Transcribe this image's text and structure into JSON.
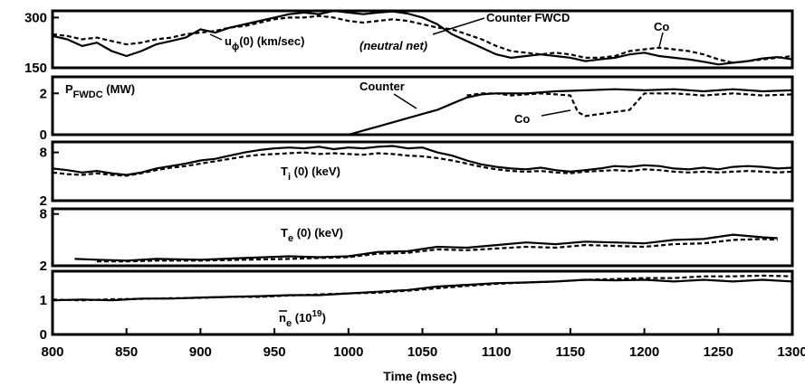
{
  "chart_data": {
    "type": "line",
    "shared_x": {
      "label": "Time (msec)",
      "lim": [
        800,
        1300
      ],
      "ticks": [
        "800",
        "850",
        "900",
        "950",
        "1000",
        "1050",
        "1100",
        "1150",
        "1200",
        "1250",
        "1300"
      ]
    },
    "legend": "annotations",
    "grid": false,
    "panels": [
      {
        "label_main": "u",
        "label_sub": "ϕ",
        "label_rest": "(0) (km/sec)",
        "ylim": [
          150,
          320
        ],
        "y_ticks": [
          "300",
          "150"
        ],
        "y_tick_values": [
          300,
          150
        ],
        "annotations": [
          "Counter FWCD",
          "(neutral net)",
          "Co"
        ],
        "series": [
          {
            "name": "Counter FWCD",
            "style": "solid",
            "x": [
              800,
              810,
              820,
              830,
              840,
              850,
              860,
              870,
              880,
              890,
              900,
              910,
              920,
              930,
              940,
              950,
              960,
              970,
              980,
              990,
              1000,
              1010,
              1020,
              1030,
              1040,
              1050,
              1060,
              1070,
              1080,
              1090,
              1100,
              1110,
              1120,
              1130,
              1140,
              1150,
              1160,
              1170,
              1180,
              1190,
              1200,
              1210,
              1220,
              1230,
              1240,
              1250,
              1260,
              1270,
              1280,
              1290,
              1300
            ],
            "y": [
              245,
              235,
              215,
              225,
              200,
              185,
              200,
              220,
              230,
              240,
              265,
              255,
              270,
              280,
              290,
              300,
              310,
              315,
              310,
              320,
              315,
              310,
              315,
              318,
              312,
              300,
              280,
              250,
              230,
              210,
              190,
              180,
              185,
              190,
              185,
              180,
              170,
              175,
              180,
              190,
              195,
              185,
              180,
              175,
              168,
              160,
              165,
              170,
              178,
              182,
              175
            ]
          },
          {
            "name": "Co",
            "style": "dashed",
            "x": [
              800,
              810,
              820,
              830,
              840,
              850,
              860,
              870,
              880,
              890,
              900,
              910,
              920,
              930,
              940,
              950,
              960,
              970,
              980,
              990,
              1000,
              1010,
              1020,
              1030,
              1040,
              1050,
              1060,
              1070,
              1080,
              1090,
              1100,
              1110,
              1120,
              1130,
              1140,
              1150,
              1160,
              1170,
              1180,
              1190,
              1200,
              1210,
              1220,
              1230,
              1240,
              1250,
              1260,
              1270,
              1280,
              1290,
              1300
            ],
            "y": [
              250,
              245,
              235,
              240,
              230,
              220,
              225,
              235,
              240,
              250,
              255,
              260,
              270,
              275,
              285,
              295,
              300,
              300,
              305,
              300,
              290,
              285,
              290,
              295,
              290,
              280,
              270,
              265,
              250,
              235,
              215,
              200,
              195,
              190,
              195,
              190,
              180,
              180,
              185,
              200,
              205,
              210,
              205,
              200,
              190,
              175,
              165,
              170,
              175,
              180,
              185
            ]
          }
        ]
      },
      {
        "label_main": "P",
        "label_sub": "FWDC",
        "label_rest": " (MW)",
        "ylim": [
          0,
          2.8
        ],
        "y_ticks": [
          "2",
          "0"
        ],
        "y_tick_values": [
          2,
          0
        ],
        "annotations": [
          "Counter",
          "Co"
        ],
        "series": [
          {
            "name": "Counter",
            "style": "solid",
            "x": [
              800,
              900,
              1000,
              1010,
              1020,
              1030,
              1040,
              1050,
              1060,
              1070,
              1080,
              1090,
              1100,
              1120,
              1140,
              1160,
              1180,
              1200,
              1220,
              1240,
              1260,
              1280,
              1300
            ],
            "y": [
              0,
              0,
              0,
              0.2,
              0.4,
              0.6,
              0.8,
              1.0,
              1.2,
              1.5,
              1.8,
              1.95,
              2.0,
              2.0,
              2.1,
              2.15,
              2.2,
              2.15,
              2.2,
              2.1,
              2.2,
              2.1,
              2.15
            ]
          },
          {
            "name": "Co",
            "style": "dashed",
            "x": [
              1080,
              1090,
              1100,
              1110,
              1120,
              1130,
              1140,
              1150,
              1155,
              1160,
              1170,
              1180,
              1190,
              1200,
              1220,
              1240,
              1260,
              1280,
              1300
            ],
            "y": [
              1.9,
              2.0,
              2.0,
              1.9,
              1.95,
              2.0,
              1.95,
              1.9,
              1.1,
              0.9,
              1.0,
              1.1,
              1.2,
              2.0,
              2.0,
              1.9,
              2.0,
              1.9,
              1.95
            ]
          }
        ]
      },
      {
        "label_main": "T",
        "label_sub": "i",
        "label_rest": " (0) (keV)",
        "ylim": [
          2,
          9.3
        ],
        "y_ticks": [
          "8",
          "2"
        ],
        "y_tick_values": [
          8,
          2
        ],
        "annotations": [],
        "series": [
          {
            "name": "Counter",
            "style": "solid",
            "x": [
              800,
              810,
              820,
              830,
              840,
              850,
              860,
              870,
              880,
              890,
              900,
              910,
              920,
              930,
              940,
              950,
              960,
              970,
              980,
              990,
              1000,
              1010,
              1020,
              1030,
              1040,
              1050,
              1060,
              1070,
              1080,
              1090,
              1100,
              1110,
              1120,
              1130,
              1140,
              1150,
              1160,
              1170,
              1180,
              1190,
              1200,
              1210,
              1220,
              1230,
              1240,
              1250,
              1260,
              1270,
              1280,
              1290,
              1300
            ],
            "y": [
              6.0,
              5.8,
              5.5,
              5.7,
              5.4,
              5.2,
              5.5,
              6.0,
              6.3,
              6.6,
              7.0,
              7.2,
              7.6,
              8.0,
              8.3,
              8.5,
              8.6,
              8.5,
              8.7,
              8.4,
              8.6,
              8.5,
              8.7,
              8.8,
              8.5,
              8.6,
              8.0,
              7.6,
              7.0,
              6.5,
              6.2,
              6.0,
              5.9,
              6.1,
              5.8,
              5.6,
              5.8,
              6.0,
              6.3,
              6.2,
              6.4,
              6.3,
              6.0,
              5.9,
              6.1,
              5.9,
              6.2,
              6.3,
              6.2,
              6.0,
              6.1
            ]
          },
          {
            "name": "Co",
            "style": "dashed",
            "x": [
              800,
              810,
              820,
              830,
              840,
              850,
              860,
              870,
              880,
              890,
              900,
              910,
              920,
              930,
              940,
              950,
              960,
              970,
              980,
              990,
              1000,
              1010,
              1020,
              1030,
              1040,
              1050,
              1060,
              1070,
              1080,
              1090,
              1100,
              1110,
              1120,
              1130,
              1140,
              1150,
              1160,
              1170,
              1180,
              1190,
              1200,
              1210,
              1220,
              1230,
              1240,
              1250,
              1260,
              1270,
              1280,
              1290,
              1300
            ],
            "y": [
              5.5,
              5.3,
              5.2,
              5.4,
              5.2,
              5.1,
              5.4,
              5.8,
              6.1,
              6.3,
              6.6,
              6.9,
              7.2,
              7.5,
              7.7,
              7.8,
              7.9,
              8.0,
              7.8,
              7.9,
              7.8,
              7.7,
              7.9,
              7.8,
              7.6,
              7.5,
              7.3,
              7.0,
              6.6,
              6.2,
              5.9,
              5.7,
              5.6,
              5.7,
              5.5,
              5.4,
              5.6,
              5.7,
              5.8,
              5.7,
              5.9,
              5.8,
              5.6,
              5.5,
              5.6,
              5.5,
              5.6,
              5.7,
              5.6,
              5.5,
              5.6
            ]
          }
        ]
      },
      {
        "label_main": "T",
        "label_sub": "e",
        "label_rest": " (0) (keV)",
        "ylim": [
          2,
          8.6
        ],
        "y_ticks": [
          "8",
          "2"
        ],
        "y_tick_values": [
          8,
          2
        ],
        "annotations": [],
        "series": [
          {
            "name": "Counter",
            "style": "solid",
            "x": [
              815,
              830,
              850,
              870,
              900,
              930,
              960,
              980,
              1000,
              1020,
              1040,
              1060,
              1080,
              1100,
              1120,
              1140,
              1160,
              1180,
              1200,
              1220,
              1240,
              1260,
              1280,
              1290
            ],
            "y": [
              2.8,
              2.7,
              2.6,
              2.8,
              2.7,
              2.9,
              3.1,
              3.0,
              3.1,
              3.6,
              3.7,
              4.2,
              4.1,
              4.4,
              4.7,
              4.5,
              4.8,
              4.7,
              4.6,
              5.0,
              5.1,
              5.6,
              5.3,
              5.2
            ]
          },
          {
            "name": "Co",
            "style": "dashed",
            "x": [
              830,
              850,
              870,
              900,
              930,
              960,
              980,
              1000,
              1020,
              1040,
              1060,
              1080,
              1100,
              1120,
              1140,
              1160,
              1180,
              1200,
              1220,
              1240,
              1260,
              1280,
              1290
            ],
            "y": [
              2.5,
              2.5,
              2.6,
              2.6,
              2.7,
              2.8,
              2.9,
              3.0,
              3.4,
              3.5,
              3.9,
              3.8,
              4.0,
              4.2,
              4.1,
              4.4,
              4.3,
              4.2,
              4.5,
              4.6,
              5.0,
              5.1,
              5.0
            ]
          }
        ]
      },
      {
        "label_main": "n",
        "label_sub": "e",
        "label_rest": " (10",
        "label_sup": "19",
        "label_close": ")",
        "ylim": [
          0,
          1.85
        ],
        "y_ticks": [
          "1",
          "0"
        ],
        "y_tick_values": [
          1,
          0
        ],
        "annotations": [],
        "series": [
          {
            "name": "Counter",
            "style": "solid",
            "x": [
              800,
              820,
              840,
              860,
              880,
              900,
              920,
              940,
              960,
              980,
              1000,
              1020,
              1040,
              1060,
              1080,
              1100,
              1120,
              1140,
              1160,
              1180,
              1200,
              1220,
              1240,
              1260,
              1280,
              1300
            ],
            "y": [
              1.0,
              1.02,
              1.0,
              1.05,
              1.05,
              1.08,
              1.1,
              1.12,
              1.15,
              1.15,
              1.2,
              1.25,
              1.3,
              1.4,
              1.45,
              1.5,
              1.52,
              1.55,
              1.6,
              1.58,
              1.6,
              1.55,
              1.6,
              1.55,
              1.6,
              1.55
            ]
          },
          {
            "name": "Co",
            "style": "dashed",
            "x": [
              800,
              820,
              840,
              860,
              880,
              900,
              920,
              940,
              960,
              980,
              1000,
              1020,
              1040,
              1060,
              1080,
              1100,
              1120,
              1140,
              1160,
              1180,
              1200,
              1220,
              1240,
              1260,
              1280,
              1300
            ],
            "y": [
              1.02,
              1.0,
              1.03,
              1.04,
              1.06,
              1.07,
              1.1,
              1.1,
              1.14,
              1.17,
              1.2,
              1.22,
              1.28,
              1.35,
              1.42,
              1.48,
              1.52,
              1.55,
              1.6,
              1.62,
              1.65,
              1.65,
              1.7,
              1.7,
              1.72,
              1.7
            ]
          }
        ]
      }
    ]
  }
}
